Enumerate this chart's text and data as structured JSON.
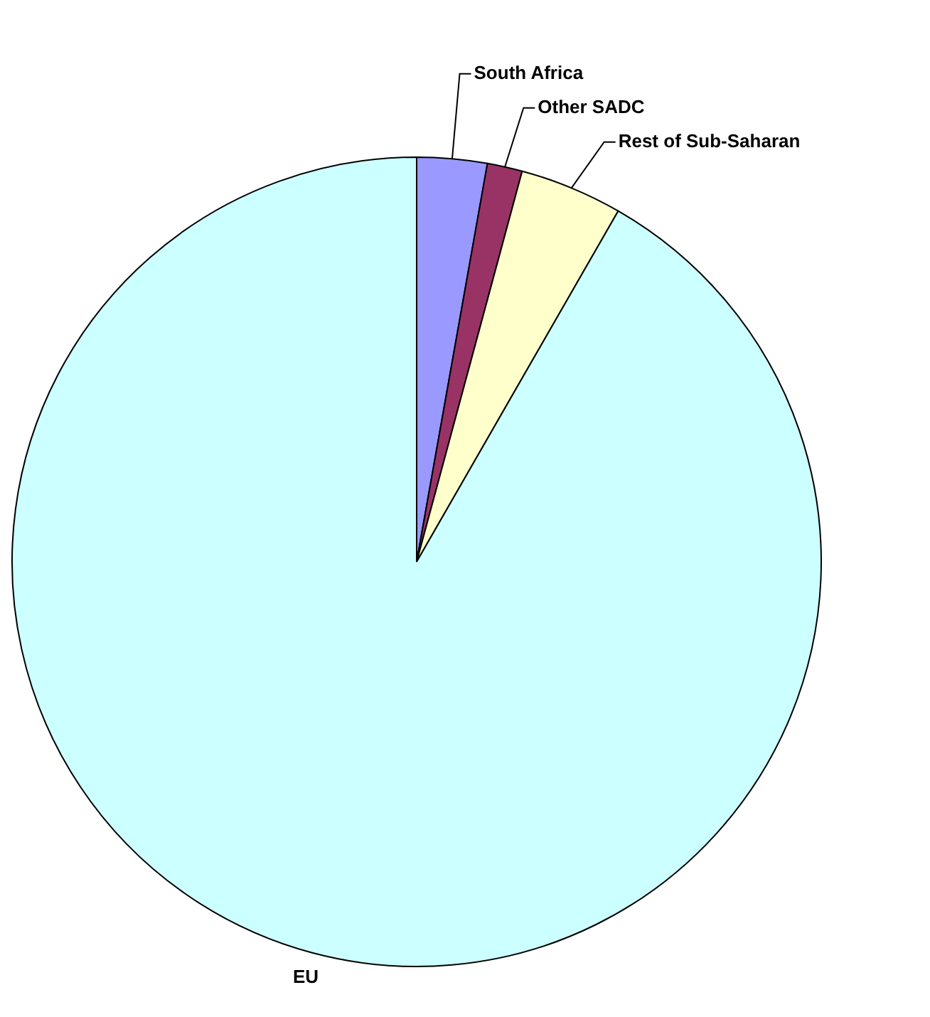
{
  "chart_data": {
    "type": "pie",
    "categories": [
      "South Africa",
      "Other SADC",
      "Rest of Sub-Saharan",
      "EU"
    ],
    "values": [
      2.8,
      1.4,
      4.1,
      91.7
    ],
    "colors": [
      "#9999ff",
      "#993366",
      "#ffffcc",
      "#ccffff"
    ],
    "legend": false
  }
}
